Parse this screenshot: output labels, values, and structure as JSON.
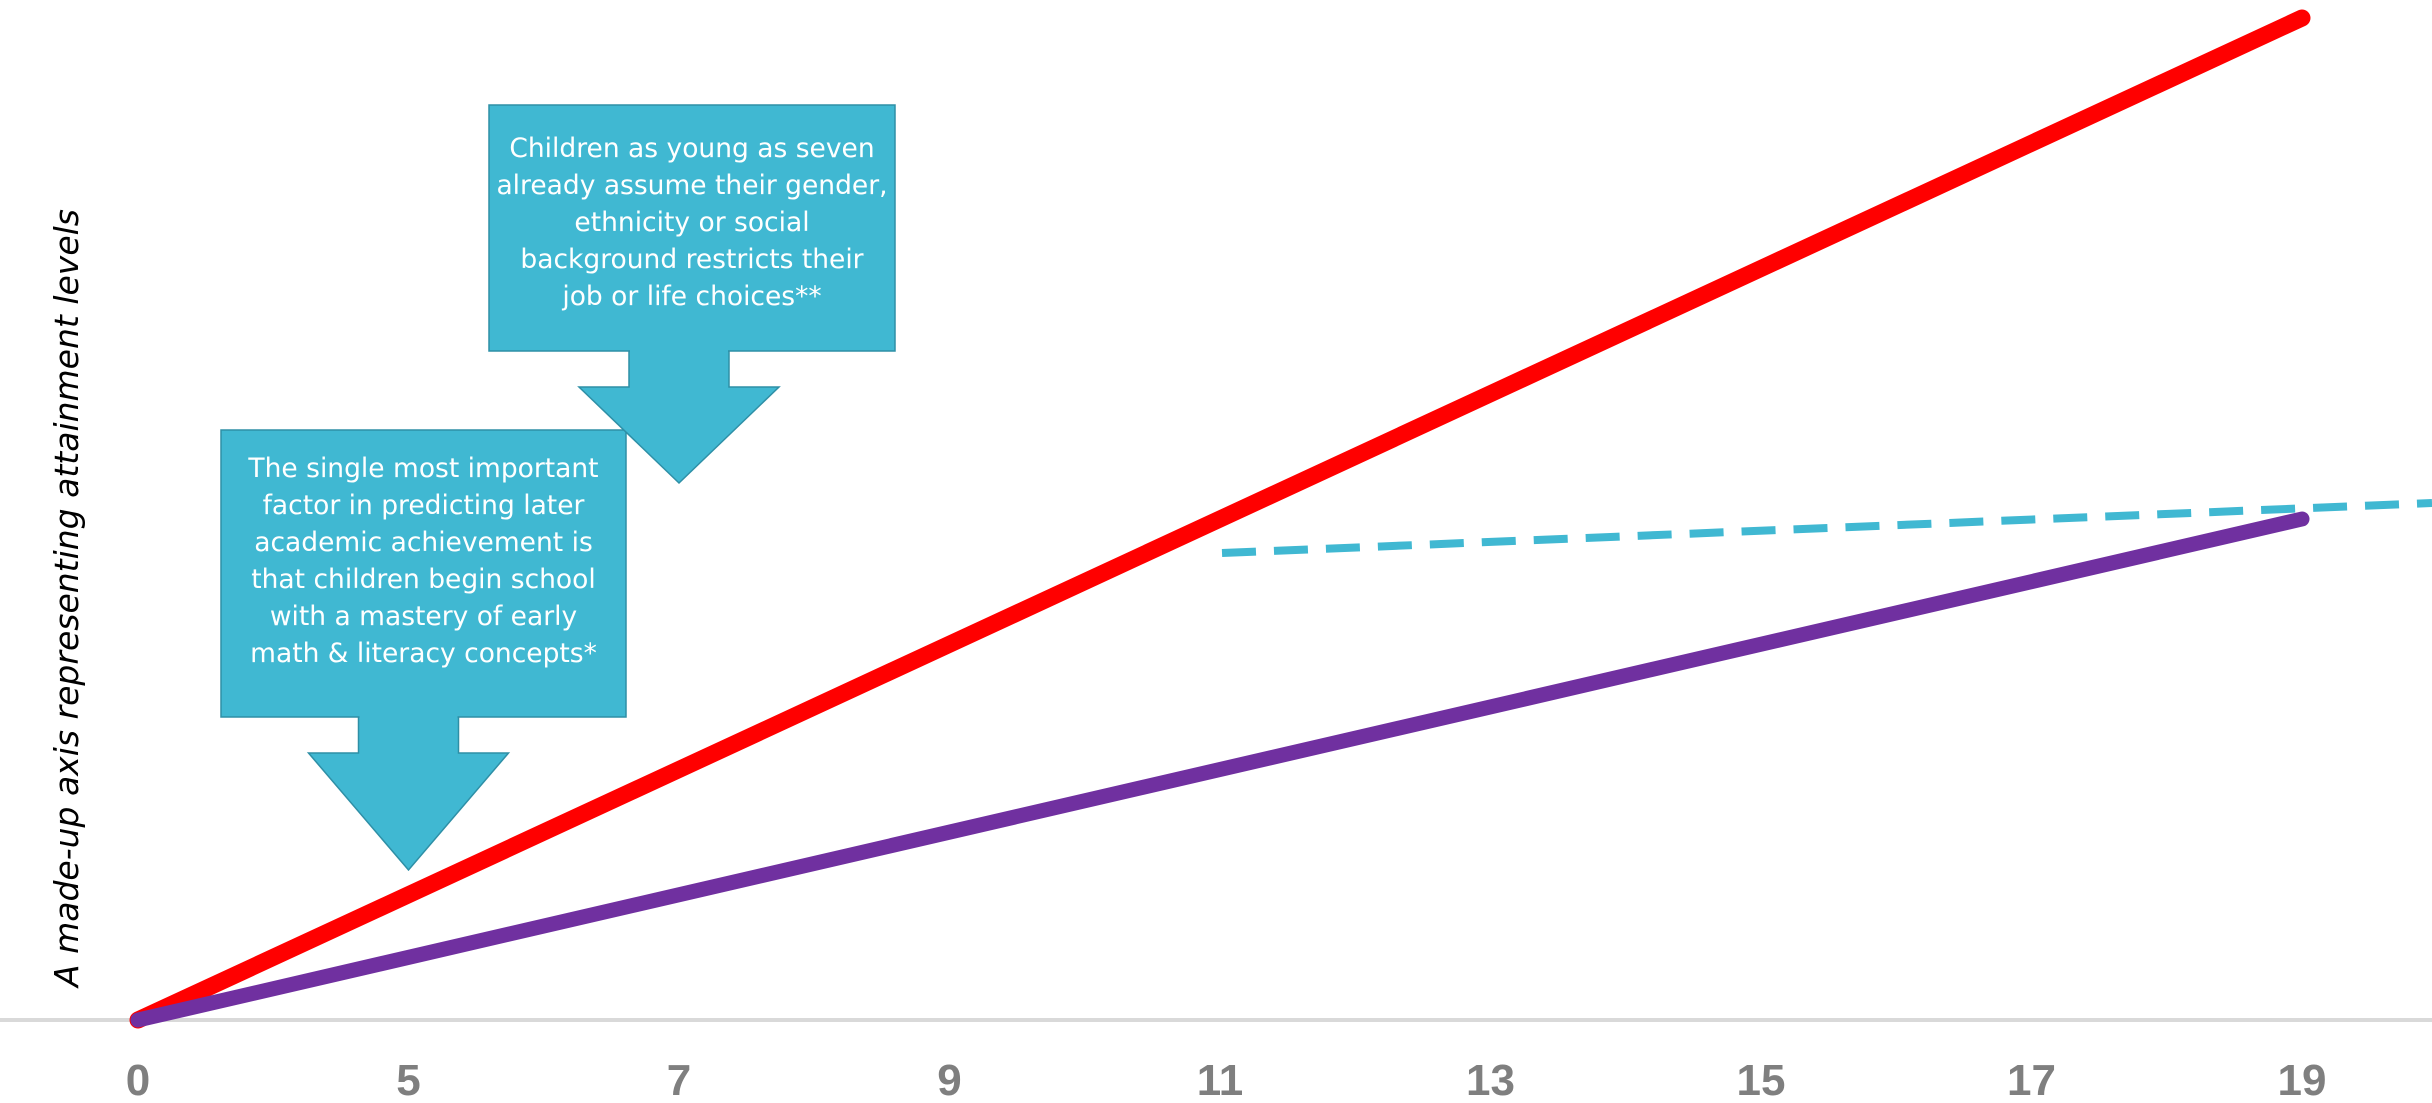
{
  "chart_data": {
    "type": "line",
    "title": "",
    "xlabel": "",
    "ylabel": "A made-up axis representing attainment levels",
    "x_ticks": [
      "0",
      "5",
      "7",
      "9",
      "11",
      "13",
      "15",
      "17",
      "19"
    ],
    "series": [
      {
        "color": "#ff0000",
        "points": [
          {
            "x": "0",
            "y": 0
          },
          {
            "x": "19",
            "y": 100
          }
        ]
      },
      {
        "color": "#7030a0",
        "points": [
          {
            "x": "0",
            "y": 0
          },
          {
            "x": "19",
            "y": 50
          }
        ]
      }
    ],
    "reference_line": {
      "style": "dashed",
      "color": "#40b8d2",
      "from": {
        "x": "11",
        "y": 48
      },
      "to": {
        "x": "20",
        "y": 51
      }
    },
    "annotations": [
      {
        "lines": [
          "The single most important",
          "factor in predicting later",
          "academic achievement is",
          "that children begin school",
          "with a mastery of early",
          "math & literacy concepts*"
        ],
        "points_to_x": "5"
      },
      {
        "lines": [
          "Children as young as seven",
          "already assume their gender,",
          "ethnicity or social",
          "background restricts their",
          "job or life choices**"
        ],
        "points_to_x": "7"
      }
    ],
    "ylim": [
      0,
      100
    ],
    "grid": false,
    "legend": "none",
    "colors": {
      "callout": "#40b8d2",
      "callout_border": "#2e8fa6",
      "axis": "#d9d9d9",
      "tick_text": "#7f7f7f"
    }
  }
}
